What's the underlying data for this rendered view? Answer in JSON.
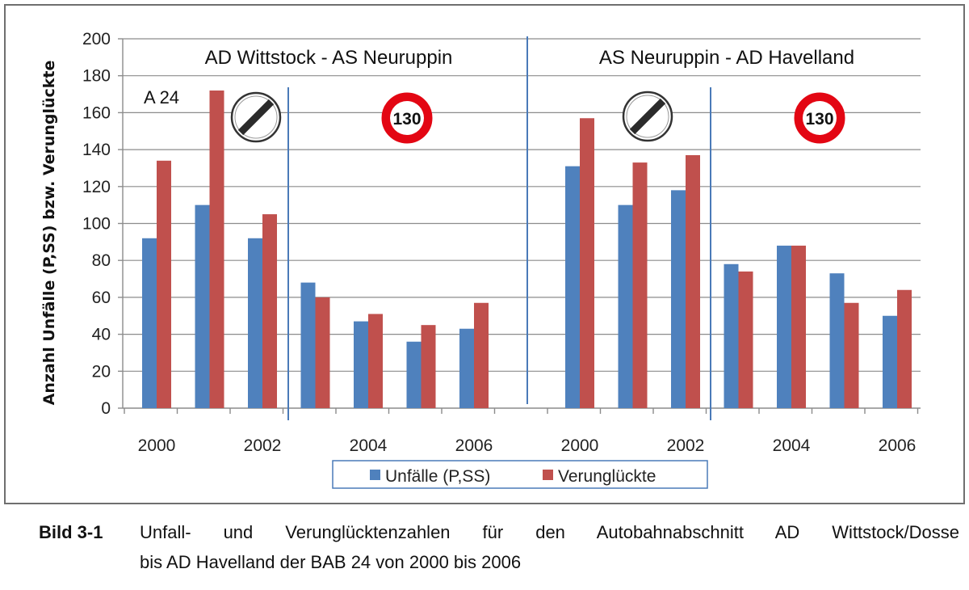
{
  "chart_data": {
    "type": "bar",
    "ylabel": "Anzahl Unfälle (P,SS) bzw. Verunglückte",
    "ylim": [
      0,
      200
    ],
    "yticks": [
      "0",
      "20",
      "40",
      "60",
      "80",
      "100",
      "120",
      "140",
      "160",
      "180",
      "200"
    ],
    "grid": true,
    "legend_position": "bottom",
    "categories": [
      "2000",
      "2001",
      "2002",
      "2003",
      "2004",
      "2005",
      "2006",
      "2000",
      "2001",
      "2002",
      "2003",
      "2004",
      "2005",
      "2006"
    ],
    "xtick_labels": [
      "2000",
      "2002",
      "2004",
      "2006",
      "2000",
      "2002",
      "2004",
      "2006"
    ],
    "series": [
      {
        "name": "Unfälle (P,SS)",
        "color": "#4f81bd",
        "values": [
          92,
          110,
          92,
          68,
          47,
          36,
          43,
          131,
          110,
          118,
          78,
          88,
          73,
          50
        ]
      },
      {
        "name": "Verunglückte",
        "color": "#c0504d",
        "values": [
          134,
          172,
          105,
          60,
          51,
          45,
          57,
          157,
          133,
          137,
          74,
          88,
          57,
          64
        ]
      }
    ],
    "panels": [
      {
        "title": "AD Wittstock - AS Neuruppin"
      },
      {
        "title": "AS Neuruppin - AD Havelland"
      }
    ],
    "annotations": {
      "road": "A 24",
      "end_of_limit_sign": "end-of-restrictions-sign-icon",
      "speed_limit_sign": "130"
    }
  },
  "caption": {
    "number": "Bild 3-1",
    "line1": "Unfall- und Verunglücktenzahlen für den Autobahnabschnitt AD Wittstock/Dosse",
    "line2": "bis AD Havelland der BAB 24 von 2000 bis 2006"
  }
}
